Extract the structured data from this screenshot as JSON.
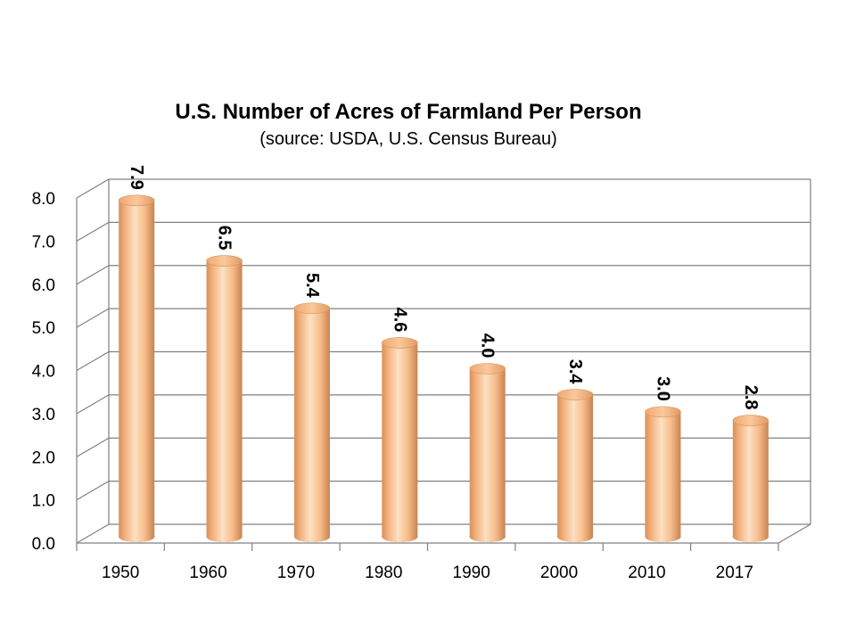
{
  "chart_data": {
    "type": "bar",
    "title": "U.S. Number of Acres of Farmland Per Person",
    "subtitle": "(source: USDA, U.S. Census Bureau)",
    "categories": [
      "1950",
      "1960",
      "1970",
      "1980",
      "1990",
      "2000",
      "2010",
      "2017"
    ],
    "values": [
      7.9,
      6.5,
      5.4,
      4.6,
      4.0,
      3.4,
      3.0,
      2.8
    ],
    "data_labels": [
      "7.9",
      "6.5",
      "5.4",
      "4.6",
      "4.0",
      "3.4",
      "3.0",
      "2.8"
    ],
    "y_ticks": [
      "0.0",
      "1.0",
      "2.0",
      "3.0",
      "4.0",
      "5.0",
      "6.0",
      "7.0",
      "8.0"
    ],
    "ylim": [
      0,
      8
    ],
    "grid": true,
    "legend": "none",
    "bar_shape": "cylinder",
    "bar_color": "#FAC090",
    "bar_shadow_color": "#D08A4E",
    "grid_color": "#808080"
  }
}
